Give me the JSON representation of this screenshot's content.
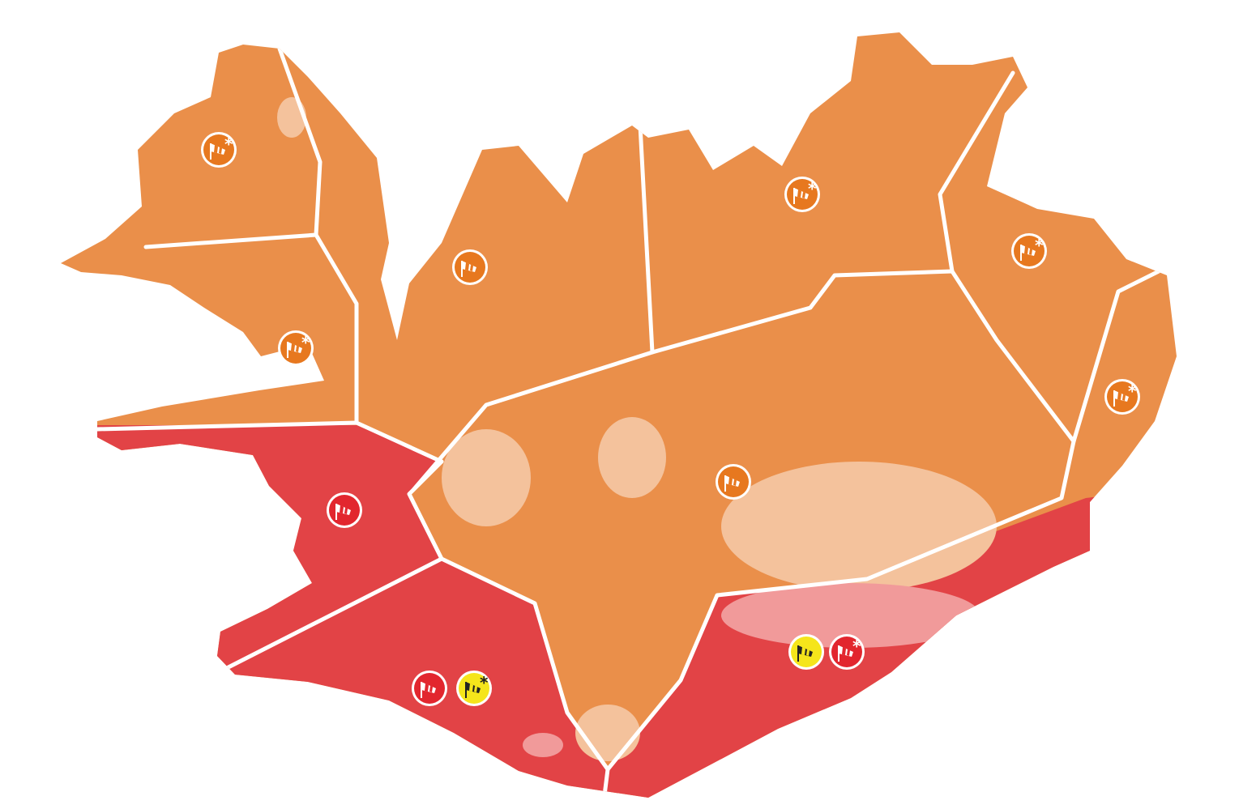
{
  "map": {
    "colors": {
      "orange_warning": "#EA8F4A",
      "red_warning": "#E24346",
      "yellow_warning": "#F5E51B",
      "glacier_on_orange": "#F4C29C",
      "glacier_on_red": "#F19A9A",
      "border": "#FFFFFF"
    },
    "regions": [
      {
        "id": "westfjords",
        "level": "orange"
      },
      {
        "id": "breidafjordur",
        "level": "orange"
      },
      {
        "id": "northwest",
        "level": "orange"
      },
      {
        "id": "northeast",
        "level": "orange"
      },
      {
        "id": "east",
        "level": "orange"
      },
      {
        "id": "southeast-fjords",
        "level": "orange"
      },
      {
        "id": "central-highlands",
        "level": "orange"
      },
      {
        "id": "faxafloi",
        "level": "red"
      },
      {
        "id": "south",
        "level": "red"
      },
      {
        "id": "southeast",
        "level": "red"
      }
    ],
    "warning_icons": [
      {
        "region": "westfjords",
        "level": "orange",
        "type": "wind-snow"
      },
      {
        "region": "breidafjordur",
        "level": "orange",
        "type": "wind-snow"
      },
      {
        "region": "northwest",
        "level": "orange",
        "type": "wind"
      },
      {
        "region": "northeast",
        "level": "orange",
        "type": "wind-snow"
      },
      {
        "region": "east",
        "level": "orange",
        "type": "wind-snow"
      },
      {
        "region": "southeast-fjords",
        "level": "orange",
        "type": "wind-snow"
      },
      {
        "region": "central-highlands",
        "level": "orange",
        "type": "wind"
      },
      {
        "region": "faxafloi",
        "level": "red",
        "type": "wind"
      },
      {
        "region": "south",
        "level": "red",
        "type": "wind"
      },
      {
        "region": "south",
        "level": "yellow",
        "type": "wind-snow"
      },
      {
        "region": "southeast",
        "level": "yellow",
        "type": "wind"
      },
      {
        "region": "southeast",
        "level": "red",
        "type": "wind-snow"
      }
    ]
  }
}
